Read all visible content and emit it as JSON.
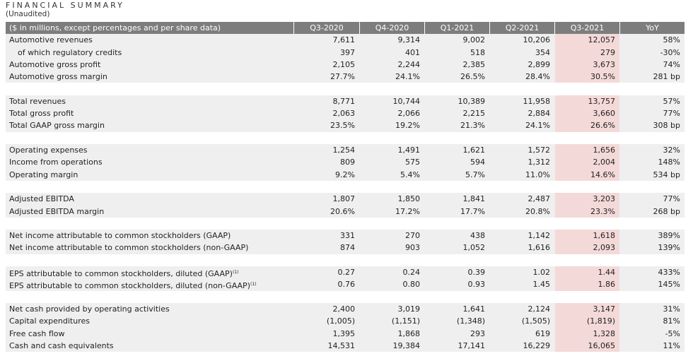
{
  "header": {
    "title": "FINANCIAL SUMMARY",
    "subtitle": "(Unaudited)"
  },
  "table": {
    "columns": [
      "($ in millions, except percentages and per share data)",
      "Q3-2020",
      "Q4-2020",
      "Q1-2021",
      "Q2-2021",
      "Q3-2021",
      "YoY"
    ],
    "sections": [
      {
        "rows": [
          {
            "label": "Automotive revenues",
            "cells": [
              "7,611",
              "9,314",
              "9,002",
              "10,206",
              "12,057",
              "58%"
            ]
          },
          {
            "label": "of which regulatory credits",
            "level": 1,
            "cells": [
              "397",
              "401",
              "518",
              "354",
              "279",
              "-30%"
            ]
          },
          {
            "label": "Automotive gross profit",
            "cells": [
              "2,105",
              "2,244",
              "2,385",
              "2,899",
              "3,673",
              "74%"
            ]
          },
          {
            "label": "Automotive gross margin",
            "cells": [
              "27.7%",
              "24.1%",
              "26.5%",
              "28.4%",
              "30.5%",
              "281 bp"
            ]
          }
        ]
      },
      {
        "rows": [
          {
            "label": "Total revenues",
            "cells": [
              "8,771",
              "10,744",
              "10,389",
              "11,958",
              "13,757",
              "57%"
            ]
          },
          {
            "label": "Total gross profit",
            "cells": [
              "2,063",
              "2,066",
              "2,215",
              "2,884",
              "3,660",
              "77%"
            ]
          },
          {
            "label": "Total GAAP gross margin",
            "cells": [
              "23.5%",
              "19.2%",
              "21.3%",
              "24.1%",
              "26.6%",
              "308 bp"
            ]
          }
        ]
      },
      {
        "rows": [
          {
            "label": "Operating expenses",
            "cells": [
              "1,254",
              "1,491",
              "1,621",
              "1,572",
              "1,656",
              "32%"
            ]
          },
          {
            "label": "Income from operations",
            "cells": [
              "809",
              "575",
              "594",
              "1,312",
              "2,004",
              "148%"
            ]
          },
          {
            "label": "Operating margin",
            "cells": [
              "9.2%",
              "5.4%",
              "5.7%",
              "11.0%",
              "14.6%",
              "534 bp"
            ]
          }
        ]
      },
      {
        "rows": [
          {
            "label": "Adjusted EBITDA",
            "cells": [
              "1,807",
              "1,850",
              "1,841",
              "2,487",
              "3,203",
              "77%"
            ]
          },
          {
            "label": "Adjusted EBITDA margin",
            "cells": [
              "20.6%",
              "17.2%",
              "17.7%",
              "20.8%",
              "23.3%",
              "268 bp"
            ]
          }
        ]
      },
      {
        "rows": [
          {
            "label": "Net income attributable to common stockholders (GAAP)",
            "cells": [
              "331",
              "270",
              "438",
              "1,142",
              "1,618",
              "389%"
            ]
          },
          {
            "label": "Net income attributable to common stockholders (non-GAAP)",
            "cells": [
              "874",
              "903",
              "1,052",
              "1,616",
              "2,093",
              "139%"
            ]
          }
        ]
      },
      {
        "rows": [
          {
            "label": "EPS attributable to common stockholders, diluted (GAAP)",
            "note": "(1)",
            "cells": [
              "0.27",
              "0.24",
              "0.39",
              "1.02",
              "1.44",
              "433%"
            ]
          },
          {
            "label": "EPS attributable to common stockholders, diluted (non-GAAP)",
            "note": "(1)",
            "cells": [
              "0.76",
              "0.80",
              "0.93",
              "1.45",
              "1.86",
              "145%"
            ]
          }
        ]
      },
      {
        "rows": [
          {
            "label": "Net cash provided by operating activities",
            "cells": [
              "2,400",
              "3,019",
              "1,641",
              "2,124",
              "3,147",
              "31%"
            ]
          },
          {
            "label": "Capital expenditures",
            "cells": [
              "(1,005)",
              "(1,151)",
              "(1,348)",
              "(1,505)",
              "(1,819)",
              "81%"
            ]
          },
          {
            "label": "Free cash flow",
            "cells": [
              "1,395",
              "1,868",
              "293",
              "619",
              "1,328",
              "-5%"
            ]
          },
          {
            "label": "Cash and cash equivalents",
            "cells": [
              "14,531",
              "19,384",
              "17,141",
              "16,229",
              "16,065",
              "11%"
            ]
          }
        ]
      }
    ]
  }
}
